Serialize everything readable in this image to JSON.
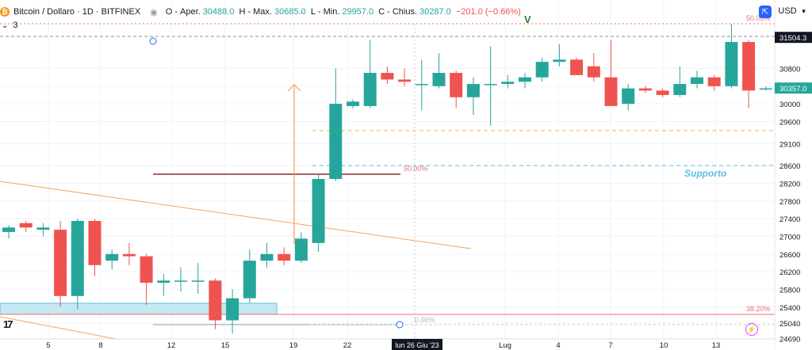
{
  "header": {
    "coin_glyph": "₿",
    "symbol": "Bitcoin / Dollaro · 1D · BITFINEX",
    "eye_icon": "eye-icon",
    "open_label": "O",
    "open_name": "Aper.",
    "open": "30488.0",
    "high_label": "H",
    "high_name": "Max.",
    "high": "30685.0",
    "low_label": "L",
    "low_name": "Min.",
    "low": "29957.0",
    "close_label": "C",
    "close_name": "Chius.",
    "close": "30287.0",
    "change": "−201.0 (−0.66%)",
    "indicator_count": "3",
    "currency": "USD",
    "expand_glyph": "⇱"
  },
  "colors": {
    "up": "#26a69a",
    "down": "#ef5350",
    "trendline": "#f7a35c",
    "fib": "#e57373",
    "support": "#5bc0de",
    "zone": "#c5e8f2"
  },
  "annotations": {
    "v_marker": "V",
    "fib_50_top": "50.00%",
    "fib_50_mid": "50.00%",
    "fib_382": "38.20%",
    "fib_0": "0.00%",
    "support_label": "Supporto",
    "tv_logo": "17",
    "flash_glyph": "⚡"
  },
  "chart_data": {
    "type": "candlestick",
    "title": "Bitcoin / Dollaro · 1D · BITFINEX",
    "y_ticks": [
      24690,
      25040,
      25400,
      25800,
      26200,
      26600,
      27000,
      27400,
      27800,
      28200,
      28600,
      29100,
      29600,
      30000,
      30400,
      30800
    ],
    "x_ticks": [
      "5",
      "8",
      "12",
      "15",
      "19",
      "22",
      "Lug",
      "4",
      "7",
      "10",
      "13"
    ],
    "crosshair_date": "lun 26 Giu '23",
    "price_labels": [
      {
        "label": "31504.3",
        "value": 31504.3
      },
      {
        "label": "30357.0",
        "value": 30357.0
      }
    ],
    "candles": [
      {
        "open": 27100,
        "high": 27250,
        "low": 26950,
        "close": 27200
      },
      {
        "open": 27300,
        "high": 27350,
        "low": 27100,
        "close": 27200
      },
      {
        "open": 27150,
        "high": 27300,
        "low": 27000,
        "close": 27200
      },
      {
        "open": 27150,
        "high": 27350,
        "low": 25400,
        "close": 25650
      },
      {
        "open": 25650,
        "high": 27400,
        "low": 25350,
        "close": 27350
      },
      {
        "open": 27350,
        "high": 27400,
        "low": 26100,
        "close": 26350
      },
      {
        "open": 26450,
        "high": 26700,
        "low": 26250,
        "close": 26600
      },
      {
        "open": 26600,
        "high": 26850,
        "low": 26350,
        "close": 26550
      },
      {
        "open": 26550,
        "high": 26600,
        "low": 25450,
        "close": 25950
      },
      {
        "open": 25950,
        "high": 26150,
        "low": 25650,
        "close": 26000
      },
      {
        "open": 26000,
        "high": 26300,
        "low": 25750,
        "close": 26000
      },
      {
        "open": 26000,
        "high": 26400,
        "low": 25700,
        "close": 26000
      },
      {
        "open": 26000,
        "high": 26050,
        "low": 24900,
        "close": 25100
      },
      {
        "open": 25100,
        "high": 25800,
        "low": 24800,
        "close": 25600
      },
      {
        "open": 25600,
        "high": 26700,
        "low": 25500,
        "close": 26450
      },
      {
        "open": 26450,
        "high": 26850,
        "low": 26300,
        "close": 26600
      },
      {
        "open": 26600,
        "high": 26750,
        "low": 26350,
        "close": 26450
      },
      {
        "open": 26450,
        "high": 27100,
        "low": 26400,
        "close": 26950
      },
      {
        "open": 26850,
        "high": 28400,
        "low": 26650,
        "close": 28300
      },
      {
        "open": 28300,
        "high": 30800,
        "low": 28250,
        "close": 30000
      },
      {
        "open": 29950,
        "high": 30100,
        "low": 29900,
        "close": 30050
      },
      {
        "open": 29950,
        "high": 31450,
        "low": 29900,
        "close": 30700
      },
      {
        "open": 30700,
        "high": 30850,
        "low": 30450,
        "close": 30550
      },
      {
        "open": 30550,
        "high": 30800,
        "low": 30400,
        "close": 30500
      },
      {
        "open": 30450,
        "high": 31000,
        "low": 29850,
        "close": 30450
      },
      {
        "open": 30400,
        "high": 31150,
        "low": 30350,
        "close": 30700
      },
      {
        "open": 30700,
        "high": 30750,
        "low": 29900,
        "close": 30150
      },
      {
        "open": 30150,
        "high": 30600,
        "low": 29750,
        "close": 30450
      },
      {
        "open": 30450,
        "high": 31300,
        "low": 29500,
        "close": 30450
      },
      {
        "open": 30450,
        "high": 30650,
        "low": 30350,
        "close": 30500
      },
      {
        "open": 30500,
        "high": 30700,
        "low": 30350,
        "close": 30600
      },
      {
        "open": 30600,
        "high": 31050,
        "low": 30500,
        "close": 30950
      },
      {
        "open": 30950,
        "high": 31350,
        "low": 30850,
        "close": 31000
      },
      {
        "open": 31000,
        "high": 31050,
        "low": 30650,
        "close": 30650
      },
      {
        "open": 30850,
        "high": 31150,
        "low": 30500,
        "close": 30600
      },
      {
        "open": 30600,
        "high": 31450,
        "low": 29950,
        "close": 29950
      },
      {
        "open": 30000,
        "high": 30450,
        "low": 29850,
        "close": 30350
      },
      {
        "open": 30350,
        "high": 30400,
        "low": 30250,
        "close": 30300
      },
      {
        "open": 30300,
        "high": 30350,
        "low": 30150,
        "close": 30200
      },
      {
        "open": 30200,
        "high": 30850,
        "low": 30150,
        "close": 30450
      },
      {
        "open": 30450,
        "high": 30750,
        "low": 30350,
        "close": 30600
      },
      {
        "open": 30600,
        "high": 30650,
        "low": 30300,
        "close": 30400
      },
      {
        "open": 30400,
        "high": 31800,
        "low": 30350,
        "close": 31400
      },
      {
        "open": 31400,
        "high": 31450,
        "low": 29900,
        "close": 30300
      },
      {
        "open": 30350,
        "high": 30400,
        "low": 30300,
        "close": 30350
      }
    ]
  }
}
